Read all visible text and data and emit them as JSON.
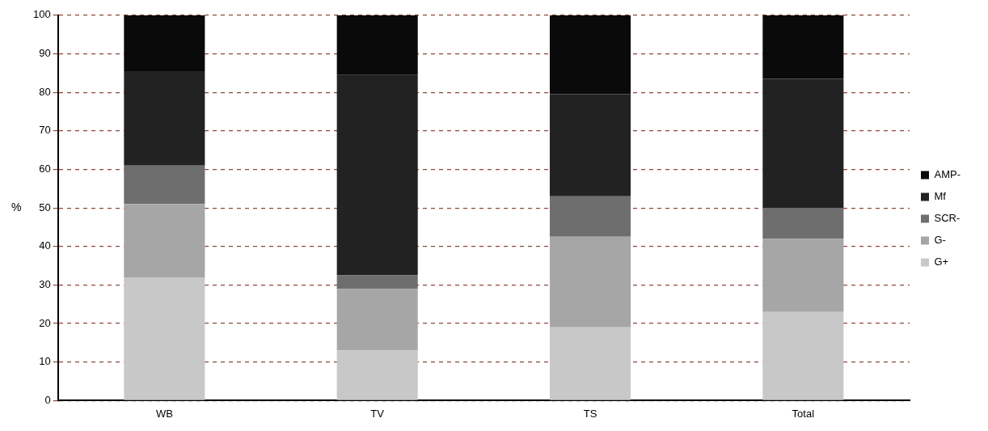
{
  "chart_data": {
    "type": "bar",
    "stacked": true,
    "ylabel": "%",
    "categories": [
      "WB",
      "TV",
      "TS",
      "Total"
    ],
    "series": [
      {
        "name": "G+",
        "color": "#c8c8c8",
        "values": [
          32,
          13,
          19,
          23
        ]
      },
      {
        "name": "G-",
        "color": "#a6a6a6",
        "values": [
          19,
          16,
          23.5,
          19
        ]
      },
      {
        "name": "SCR-",
        "color": "#6e6e6e",
        "values": [
          10,
          3.5,
          10.5,
          8
        ]
      },
      {
        "name": "Mf",
        "color": "#222222",
        "values": [
          24.5,
          52,
          26.5,
          33.5
        ]
      },
      {
        "name": "AMP-",
        "color": "#0a0a0a",
        "values": [
          14.5,
          15.5,
          20.5,
          16.5
        ]
      }
    ],
    "ylim": [
      0,
      100
    ],
    "yticks": [
      0,
      10,
      20,
      30,
      40,
      50,
      60,
      70,
      80,
      90,
      100
    ],
    "grid": "y",
    "legend": "right"
  }
}
